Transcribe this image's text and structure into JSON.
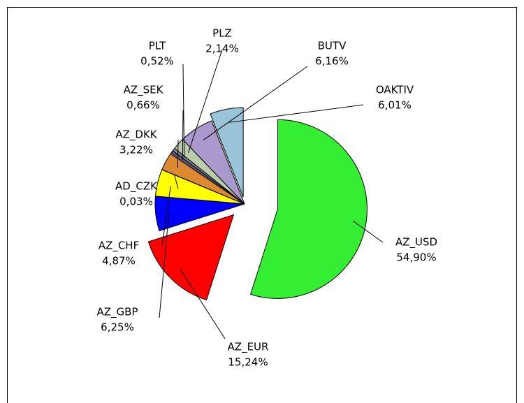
{
  "chart_data": {
    "type": "pie",
    "categories": [
      "AZ_USD",
      "AZ_EUR",
      "AZ_GBP",
      "AZ_CHF",
      "AD_CZK",
      "AZ_DKK",
      "AZ_SEK",
      "PLT",
      "PLZ",
      "BUTV",
      "OAKTIV"
    ],
    "values": [
      54.9,
      15.24,
      6.25,
      4.87,
      0.03,
      3.22,
      0.66,
      0.52,
      2.14,
      6.16,
      6.01
    ],
    "value_labels": [
      "54,90%",
      "15,24%",
      "6,25%",
      "4,87%",
      "0,03%",
      "3,22%",
      "0,66%",
      "0,52%",
      "2,14%",
      "6,16%",
      "6,01%"
    ],
    "colors": [
      "#33ee33",
      "#ff0000",
      "#0000ff",
      "#ffff00",
      "#444444",
      "#dd8833",
      "#555577",
      "#888899",
      "#bbccaa",
      "#aa99cc",
      "#99c4d8"
    ]
  }
}
